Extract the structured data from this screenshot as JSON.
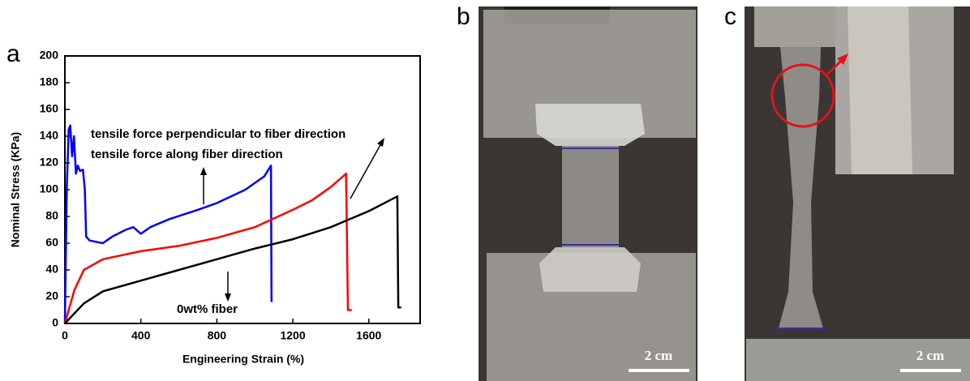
{
  "chart_data": {
    "type": "line",
    "xlabel": "Engineering Strain (%)",
    "ylabel": "Nominal Stress (KPa)",
    "xlim": [
      0,
      1870
    ],
    "ylim": [
      0,
      200
    ],
    "xticks": [
      0,
      400,
      800,
      1200,
      1600
    ],
    "yticks": [
      0,
      20,
      40,
      60,
      80,
      100,
      120,
      140,
      160,
      180,
      200
    ],
    "series": [
      {
        "name": "tensile force perpendicular to fiber direction",
        "color": "#0000ff",
        "x": [
          0,
          10,
          20,
          28,
          38,
          48,
          58,
          68,
          80,
          95,
          105,
          112,
          130,
          200,
          250,
          320,
          360,
          400,
          450,
          550,
          700,
          800,
          950,
          1050,
          1085,
          1088
        ],
        "values": [
          0,
          100,
          145,
          148,
          125,
          140,
          112,
          118,
          114,
          115,
          100,
          65,
          62,
          60,
          65,
          70,
          72,
          67,
          72,
          78,
          85,
          90,
          100,
          110,
          118,
          16
        ]
      },
      {
        "name": "tensile force along fiber direction",
        "color": "#ff0000",
        "x": [
          0,
          50,
          100,
          200,
          400,
          600,
          800,
          1000,
          1200,
          1300,
          1400,
          1480,
          1490,
          1510
        ],
        "values": [
          0,
          25,
          40,
          48,
          54,
          58,
          64,
          72,
          85,
          92,
          102,
          112,
          10,
          10
        ]
      },
      {
        "name": "0wt% fiber",
        "color": "#000000",
        "x": [
          0,
          100,
          200,
          400,
          600,
          800,
          1000,
          1200,
          1400,
          1600,
          1750,
          1755,
          1770
        ],
        "values": [
          0,
          15,
          24,
          32,
          40,
          48,
          56,
          63,
          72,
          84,
          95,
          12,
          12
        ]
      }
    ]
  },
  "panels": {
    "a": "a",
    "b": "b",
    "c": "c"
  },
  "scale_bars": {
    "b": "2 cm",
    "c": "2 cm"
  }
}
